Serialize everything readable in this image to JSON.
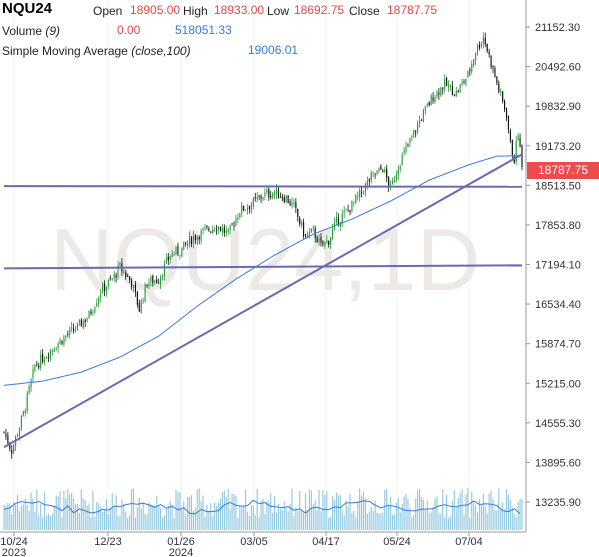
{
  "header": {
    "symbol": "NQU24",
    "open_label": "Open",
    "open_value": "18905.00",
    "high_label": "High",
    "high_value": "18933.00",
    "low_label": "Low",
    "low_value": "18692.75",
    "close_label": "Close",
    "close_value": "18787.75",
    "volume_label": "Volume",
    "volume_param": "(9)",
    "volume_change": "0.00",
    "volume_value": "518051.33",
    "sma_label": "Simple Moving Average",
    "sma_param": "(close,100)",
    "sma_value": "19006.01"
  },
  "watermark": "NQU24,1D",
  "last_price": "18787.75",
  "colors": {
    "up": "#2a9d3a",
    "down": "#111111",
    "sma": "#3a7bd5",
    "trendline": "#6a6ab0",
    "volume": "#7fbfd9",
    "price_box": "#ef4b4b"
  },
  "chart_data": {
    "type": "candlestick",
    "y_ticks": [
      "21152.30",
      "20492.60",
      "19832.90",
      "19173.20",
      "18513.50",
      "17853.80",
      "17194.10",
      "16534.40",
      "15874.70",
      "15215.00",
      "14555.30",
      "13895.60",
      "13235.90"
    ],
    "x_ticks": [
      {
        "label": "10/24",
        "sub": "2023"
      },
      {
        "label": "12/23",
        "sub": ""
      },
      {
        "label": "01/26",
        "sub": "2024"
      },
      {
        "label": "03/05",
        "sub": ""
      },
      {
        "label": "04/17",
        "sub": ""
      },
      {
        "label": "05/24",
        "sub": ""
      },
      {
        "label": "07/04",
        "sub": ""
      }
    ],
    "price_anchors": [
      [
        0,
        14400
      ],
      [
        4,
        14100
      ],
      [
        10,
        14700
      ],
      [
        16,
        15500
      ],
      [
        22,
        15700
      ],
      [
        30,
        15950
      ],
      [
        38,
        16150
      ],
      [
        44,
        16350
      ],
      [
        50,
        16750
      ],
      [
        56,
        16950
      ],
      [
        60,
        17150
      ],
      [
        66,
        16900
      ],
      [
        70,
        16450
      ],
      [
        74,
        16900
      ],
      [
        80,
        16950
      ],
      [
        86,
        17350
      ],
      [
        92,
        17450
      ],
      [
        98,
        17650
      ],
      [
        104,
        17750
      ],
      [
        110,
        17850
      ],
      [
        116,
        17700
      ],
      [
        122,
        18100
      ],
      [
        128,
        18200
      ],
      [
        134,
        18350
      ],
      [
        140,
        18400
      ],
      [
        146,
        18300
      ],
      [
        150,
        18150
      ],
      [
        156,
        17650
      ],
      [
        160,
        17750
      ],
      [
        164,
        17500
      ],
      [
        168,
        17600
      ],
      [
        172,
        17900
      ],
      [
        178,
        18100
      ],
      [
        184,
        18350
      ],
      [
        190,
        18650
      ],
      [
        196,
        18800
      ],
      [
        200,
        18450
      ],
      [
        204,
        18850
      ],
      [
        210,
        19250
      ],
      [
        216,
        19650
      ],
      [
        222,
        20000
      ],
      [
        228,
        20200
      ],
      [
        234,
        20050
      ],
      [
        240,
        20350
      ],
      [
        244,
        20750
      ],
      [
        248,
        21000
      ],
      [
        252,
        20550
      ],
      [
        256,
        20100
      ],
      [
        260,
        19700
      ],
      [
        262,
        19200
      ],
      [
        264,
        18950
      ],
      [
        266,
        19400
      ],
      [
        268,
        18800
      ]
    ],
    "sma_anchors": [
      [
        0,
        15180
      ],
      [
        20,
        15250
      ],
      [
        40,
        15400
      ],
      [
        60,
        15650
      ],
      [
        80,
        16000
      ],
      [
        100,
        16500
      ],
      [
        120,
        16950
      ],
      [
        140,
        17350
      ],
      [
        160,
        17700
      ],
      [
        180,
        17950
      ],
      [
        200,
        18250
      ],
      [
        220,
        18600
      ],
      [
        240,
        18850
      ],
      [
        255,
        19000
      ],
      [
        268,
        19006
      ]
    ],
    "trendlines": [
      {
        "x1": 0,
        "y1": 14150,
        "x2": 268,
        "y2": 19030
      },
      {
        "x1": 0,
        "y1": 18500,
        "x2": 268,
        "y2": 18490
      },
      {
        "x1": 0,
        "y1": 17130,
        "x2": 268,
        "y2": 17180
      }
    ],
    "n_bars": 269
  }
}
